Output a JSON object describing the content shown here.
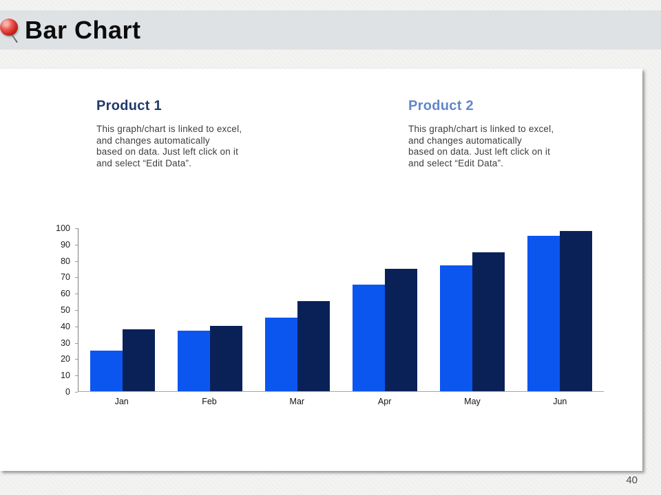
{
  "header": {
    "title": "Bar Chart",
    "pin_icon": "red-pushpin"
  },
  "products": [
    {
      "title": "Product 1",
      "color": "#1f3a68",
      "description": "This graph/chart is linked to excel,\nand changes automatically\nbased on data. Just left click on it\nand select “Edit Data”."
    },
    {
      "title": "Product 2",
      "color": "#6286ca",
      "description": "This graph/chart is linked to excel,\nand changes automatically\nbased on data. Just left click on it\nand select “Edit Data”."
    }
  ],
  "chart_data": {
    "type": "bar",
    "categories": [
      "Jan",
      "Feb",
      "Mar",
      "Apr",
      "May",
      "Jun"
    ],
    "series": [
      {
        "name": "Product 1",
        "color": "#0c56f0",
        "values": [
          25,
          37,
          45,
          65,
          77,
          95
        ]
      },
      {
        "name": "Product 2",
        "color": "#0a2158",
        "values": [
          38,
          40,
          55,
          75,
          85,
          98
        ]
      }
    ],
    "title": "",
    "xlabel": "",
    "ylabel": "",
    "ylim": [
      0,
      100
    ],
    "y_ticks": [
      0,
      10,
      20,
      30,
      40,
      50,
      60,
      70,
      80,
      90,
      100
    ],
    "grid": false,
    "legend": "none"
  },
  "page": {
    "number": "40"
  }
}
